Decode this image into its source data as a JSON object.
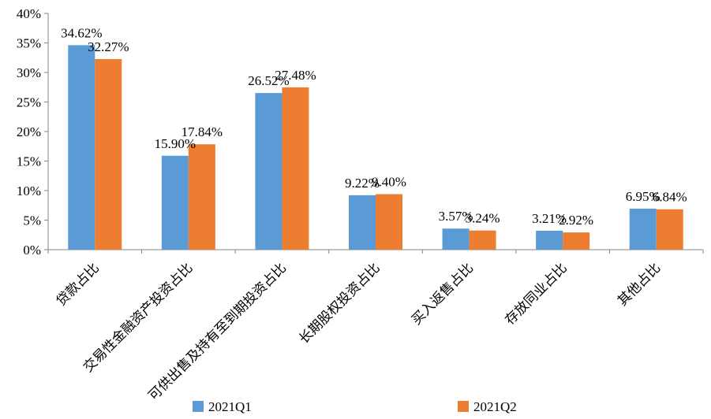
{
  "chart_data": {
    "type": "bar",
    "title": "",
    "xlabel": "",
    "ylabel": "",
    "ylim": [
      0,
      40
    ],
    "y_ticks": [
      "0%",
      "5%",
      "10%",
      "15%",
      "20%",
      "25%",
      "30%",
      "35%",
      "40%"
    ],
    "y_tick_values": [
      0,
      5,
      10,
      15,
      20,
      25,
      30,
      35,
      40
    ],
    "grid": false,
    "legend_position": "bottom",
    "categories": [
      "贷款占比",
      "交易性金融资产投资占比",
      "可供出售及持有至到期投资占比",
      "长期股权投资占比",
      "买入返售占比",
      "存放同业占比",
      "其他占比"
    ],
    "series": [
      {
        "name": "2021Q1",
        "color": "#5B9BD5",
        "values": [
          34.62,
          15.9,
          26.52,
          9.22,
          3.57,
          3.21,
          6.95
        ],
        "labels": [
          "34.62%",
          "15.90%",
          "26.52%",
          "9.22%",
          "3.57%",
          "3.21%",
          "6.95%"
        ]
      },
      {
        "name": "2021Q2",
        "color": "#ED7D31",
        "values": [
          32.27,
          17.84,
          27.48,
          9.4,
          3.24,
          2.92,
          6.84
        ],
        "labels": [
          "32.27%",
          "17.84%",
          "27.48%",
          "9.40%",
          "3.24%",
          "2.92%",
          "6.84%"
        ]
      }
    ]
  }
}
